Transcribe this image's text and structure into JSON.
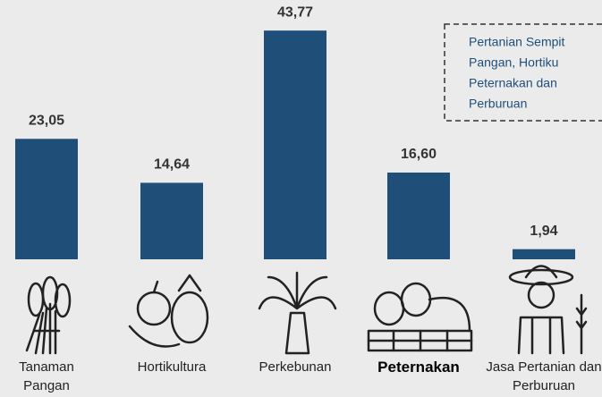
{
  "chart_data": {
    "type": "bar",
    "categories": [
      "Tanaman Pangan",
      "Hortikultura",
      "Perkebunan",
      "Peternakan",
      "Jasa Pertanian dan Perburuan"
    ],
    "values": [
      23.05,
      14.64,
      43.77,
      16.6,
      1.94
    ],
    "value_labels": [
      "23,05",
      "14,64",
      "43,77",
      "16,60",
      "1,94"
    ],
    "color": "#1f4e79",
    "ylim": [
      0,
      45
    ],
    "highlight": 3,
    "annotation": [
      "Pertanian Sempit",
      "Pangan,  Hortiku",
      "Peternakan  dan",
      "Perburuan"
    ]
  }
}
